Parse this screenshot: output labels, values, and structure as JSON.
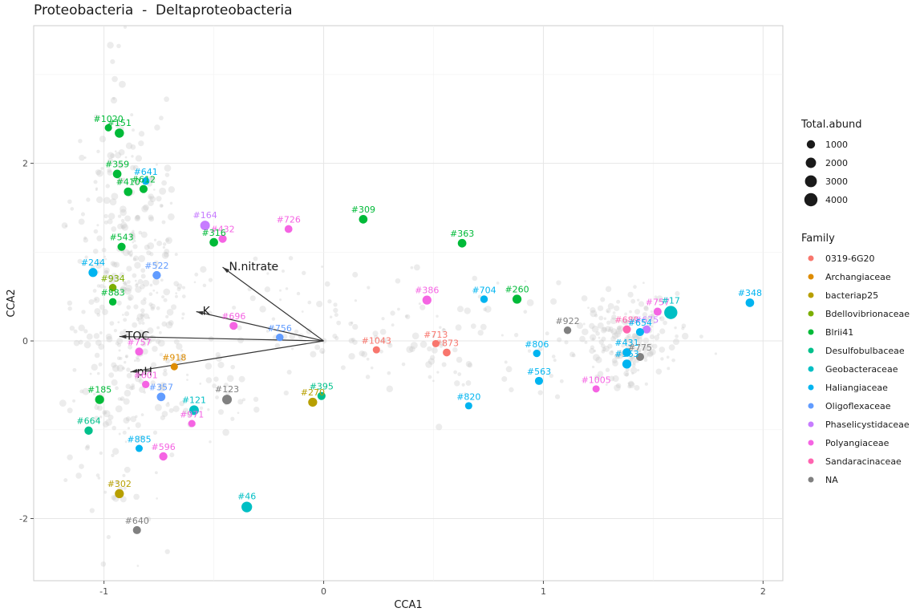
{
  "chart_title": "Proteobacteria  -  Deltaproteobacteria",
  "chart_data": {
    "type": "scatter",
    "title": "Proteobacteria  -  Deltaproteobacteria",
    "xlabel": "CCA1",
    "ylabel": "CCA2",
    "xlim": [
      -1.32,
      2.09
    ],
    "ylim": [
      -2.7,
      3.55
    ],
    "x_ticks": [
      -1,
      0,
      1,
      2
    ],
    "x_tick_labels": [
      "-1",
      "0",
      "1",
      "2"
    ],
    "y_ticks": [
      -2,
      0,
      2
    ],
    "y_tick_labels": [
      "-2",
      "0",
      "2"
    ],
    "grid": true,
    "legend_placement": "right",
    "size_legend": {
      "title": "Total.abund",
      "entries": [
        {
          "label": "1000",
          "value": 1000
        },
        {
          "label": "2000",
          "value": 2000
        },
        {
          "label": "3000",
          "value": 3000
        },
        {
          "label": "4000",
          "value": 4000
        }
      ]
    },
    "color_legend": {
      "title": "Family",
      "entries": [
        {
          "label": "0319-6G20",
          "color": "#F8766D"
        },
        {
          "label": "Archangiaceae",
          "color": "#DE8C00"
        },
        {
          "label": "bacteriap25",
          "color": "#B79F00"
        },
        {
          "label": "Bdellovibrionaceae",
          "color": "#7CAE00"
        },
        {
          "label": "Blrii41",
          "color": "#00BA38"
        },
        {
          "label": "Desulfobulbaceae",
          "color": "#00C08B"
        },
        {
          "label": "Geobacteraceae",
          "color": "#00BFC4"
        },
        {
          "label": "Haliangiaceae",
          "color": "#00B4F0"
        },
        {
          "label": "Oligoflexaceae",
          "color": "#619CFF"
        },
        {
          "label": "Phaselicystidaceae",
          "color": "#C77CFF"
        },
        {
          "label": "Polyangiaceae",
          "color": "#F564E3"
        },
        {
          "label": "Sandaracinaceae",
          "color": "#FF64B0"
        },
        {
          "label": "NA",
          "color": "#808080"
        }
      ]
    },
    "vectors": [
      {
        "label": "N.nitrate",
        "x": -0.46,
        "y": 0.83
      },
      {
        "label": "K",
        "x": -0.58,
        "y": 0.33
      },
      {
        "label": "TOC",
        "x": -0.93,
        "y": 0.05
      },
      {
        "label": "pH",
        "x": -0.88,
        "y": -0.35
      }
    ],
    "points": [
      {
        "label": "#1020",
        "x": -0.98,
        "y": 2.4,
        "family": "Blrii41",
        "abund": 600
      },
      {
        "label": "#151",
        "x": -0.93,
        "y": 2.34,
        "family": "Blrii41",
        "abund": 1400
      },
      {
        "label": "#359",
        "x": -0.94,
        "y": 1.88,
        "family": "Blrii41",
        "abund": 1100
      },
      {
        "label": "#641",
        "x": -0.81,
        "y": 1.8,
        "family": "Haliangiaceae",
        "abund": 700
      },
      {
        "label": "#410",
        "x": -0.89,
        "y": 1.68,
        "family": "Blrii41",
        "abund": 1100
      },
      {
        "label": "#612",
        "x": -0.82,
        "y": 1.71,
        "family": "Blrii41",
        "abund": 900
      },
      {
        "label": "#164",
        "x": -0.54,
        "y": 1.3,
        "family": "Phaselicystidaceae",
        "abund": 1600
      },
      {
        "label": "#432",
        "x": -0.46,
        "y": 1.15,
        "family": "Polyangiaceae",
        "abund": 900
      },
      {
        "label": "#316",
        "x": -0.5,
        "y": 1.11,
        "family": "Blrii41",
        "abund": 1100
      },
      {
        "label": "#726",
        "x": -0.16,
        "y": 1.26,
        "family": "Polyangiaceae",
        "abund": 800
      },
      {
        "label": "#309",
        "x": 0.18,
        "y": 1.37,
        "family": "Blrii41",
        "abund": 1100
      },
      {
        "label": "#363",
        "x": 0.63,
        "y": 1.1,
        "family": "Blrii41",
        "abund": 1100
      },
      {
        "label": "#543",
        "x": -0.92,
        "y": 1.06,
        "family": "Blrii41",
        "abund": 900
      },
      {
        "label": "#244",
        "x": -1.05,
        "y": 0.77,
        "family": "Haliangiaceae",
        "abund": 1300
      },
      {
        "label": "#522",
        "x": -0.76,
        "y": 0.74,
        "family": "Oligoflexaceae",
        "abund": 1000
      },
      {
        "label": "#934",
        "x": -0.96,
        "y": 0.6,
        "family": "Bdellovibrionaceae",
        "abund": 700
      },
      {
        "label": "#883",
        "x": -0.96,
        "y": 0.44,
        "family": "Blrii41",
        "abund": 700
      },
      {
        "label": "#386",
        "x": 0.47,
        "y": 0.46,
        "family": "Polyangiaceae",
        "abund": 1300
      },
      {
        "label": "#704",
        "x": 0.73,
        "y": 0.47,
        "family": "Haliangiaceae",
        "abund": 700
      },
      {
        "label": "#260",
        "x": 0.88,
        "y": 0.47,
        "family": "Blrii41",
        "abund": 1300
      },
      {
        "label": "#348",
        "x": 1.94,
        "y": 0.43,
        "family": "Haliangiaceae",
        "abund": 1100
      },
      {
        "label": "#757",
        "x": 1.52,
        "y": 0.33,
        "family": "Polyangiaceae",
        "abund": 900
      },
      {
        "label": "#17",
        "x": 1.58,
        "y": 0.32,
        "family": "Geobacteraceae",
        "abund": 4000
      },
      {
        "label": "#696",
        "x": -0.41,
        "y": 0.17,
        "family": "Polyangiaceae",
        "abund": 900
      },
      {
        "label": "#756",
        "x": -0.2,
        "y": 0.04,
        "family": "Oligoflexaceae",
        "abund": 700
      },
      {
        "label": "#922",
        "x": 1.11,
        "y": 0.12,
        "family": "NA",
        "abund": 700
      },
      {
        "label": "#689",
        "x": 1.38,
        "y": 0.13,
        "family": "Sandaracinaceae",
        "abund": 900
      },
      {
        "label": "#675",
        "x": 1.47,
        "y": 0.13,
        "family": "Phaselicystidaceae",
        "abund": 900
      },
      {
        "label": "#654",
        "x": 1.44,
        "y": 0.1,
        "family": "Haliangiaceae",
        "abund": 900
      },
      {
        "label": "#757",
        "x": -0.84,
        "y": -0.12,
        "family": "Polyangiaceae",
        "abund": 900
      },
      {
        "label": "#1043",
        "x": 0.24,
        "y": -0.1,
        "family": "0319-6G20",
        "abund": 600
      },
      {
        "label": "#713",
        "x": 0.51,
        "y": -0.03,
        "family": "0319-6G20",
        "abund": 600
      },
      {
        "label": "#873",
        "x": 0.56,
        "y": -0.13,
        "family": "0319-6G20",
        "abund": 800
      },
      {
        "label": "#806",
        "x": 0.97,
        "y": -0.14,
        "family": "Haliangiaceae",
        "abund": 700
      },
      {
        "label": "#431",
        "x": 1.38,
        "y": -0.13,
        "family": "Haliangiaceae",
        "abund": 1100
      },
      {
        "label": "#775",
        "x": 1.44,
        "y": -0.18,
        "family": "NA",
        "abund": 900
      },
      {
        "label": "#563",
        "x": 1.38,
        "y": -0.26,
        "family": "Haliangiaceae",
        "abund": 1300
      },
      {
        "label": "#918",
        "x": -0.68,
        "y": -0.29,
        "family": "Archangiaceae",
        "abund": 600
      },
      {
        "label": "#563",
        "x": 0.98,
        "y": -0.45,
        "family": "Haliangiaceae",
        "abund": 900
      },
      {
        "label": "#601",
        "x": -0.81,
        "y": -0.49,
        "family": "Polyangiaceae",
        "abund": 700
      },
      {
        "label": "#1005",
        "x": 1.24,
        "y": -0.54,
        "family": "Polyangiaceae",
        "abund": 600
      },
      {
        "label": "#357",
        "x": -0.74,
        "y": -0.63,
        "family": "Oligoflexaceae",
        "abund": 1100
      },
      {
        "label": "#123",
        "x": -0.44,
        "y": -0.66,
        "family": "NA",
        "abund": 1600
      },
      {
        "label": "#270",
        "x": -0.05,
        "y": -0.69,
        "family": "bacteriap25",
        "abund": 1300
      },
      {
        "label": "#395",
        "x": -0.01,
        "y": -0.62,
        "family": "Desulfobulbaceae",
        "abund": 900
      },
      {
        "label": "#185",
        "x": -1.02,
        "y": -0.66,
        "family": "Blrii41",
        "abund": 1300
      },
      {
        "label": "#121",
        "x": -0.59,
        "y": -0.78,
        "family": "Geobacteraceae",
        "abund": 1600
      },
      {
        "label": "#820",
        "x": 0.66,
        "y": -0.73,
        "family": "Haliangiaceae",
        "abund": 600
      },
      {
        "label": "#971",
        "x": -0.6,
        "y": -0.93,
        "family": "Polyangiaceae",
        "abund": 600
      },
      {
        "label": "#664",
        "x": -1.07,
        "y": -1.01,
        "family": "Desulfobulbaceae",
        "abund": 1000
      },
      {
        "label": "#885",
        "x": -0.84,
        "y": -1.21,
        "family": "Haliangiaceae",
        "abund": 600
      },
      {
        "label": "#596",
        "x": -0.73,
        "y": -1.3,
        "family": "Polyangiaceae",
        "abund": 1000
      },
      {
        "label": "#302",
        "x": -0.93,
        "y": -1.72,
        "family": "bacteriap25",
        "abund": 1300
      },
      {
        "label": "#46",
        "x": -0.35,
        "y": -1.87,
        "family": "Geobacteraceae",
        "abund": 2200
      },
      {
        "label": "#640",
        "x": -0.85,
        "y": -2.13,
        "family": "NA",
        "abund": 900
      }
    ]
  }
}
